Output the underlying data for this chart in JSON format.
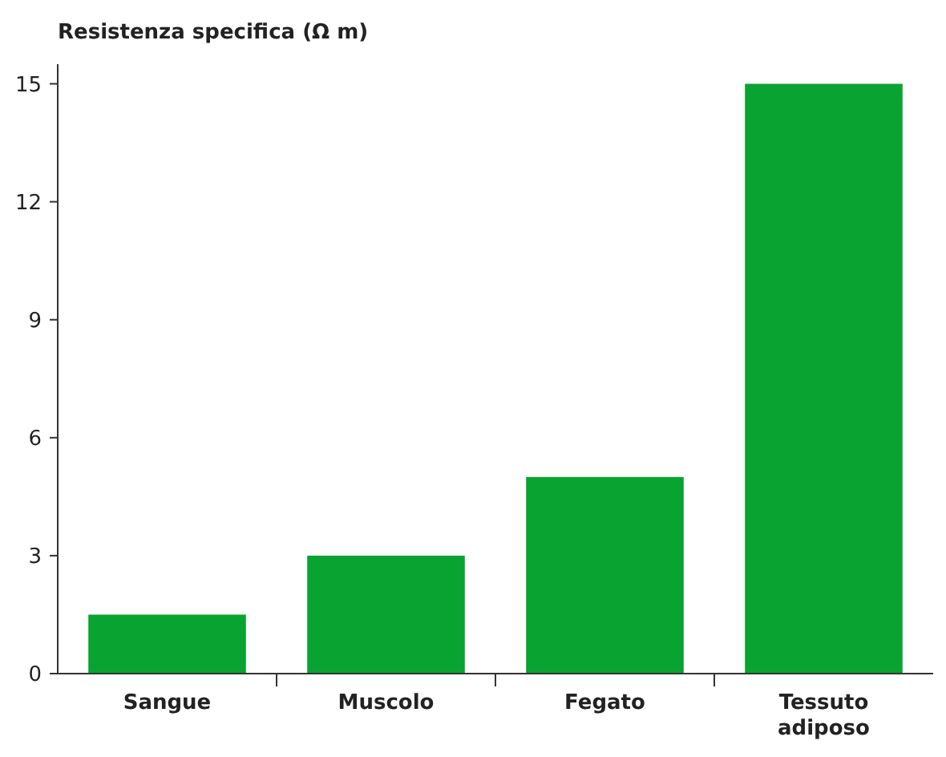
{
  "chart_data": {
    "type": "bar",
    "ylabel": "Resistenza specifica (Ω m)",
    "categories": [
      "Sangue",
      "Muscolo",
      "Fegato",
      "Tessuto adiposo"
    ],
    "values": [
      1.5,
      3,
      5,
      15
    ],
    "color": "#09a332",
    "ylim": [
      0,
      15.5
    ],
    "yticks": [
      0,
      3,
      6,
      9,
      12,
      15
    ],
    "grid": false
  }
}
